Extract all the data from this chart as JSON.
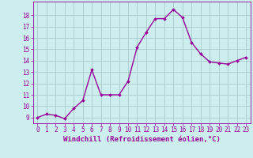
{
  "x": [
    0,
    1,
    2,
    3,
    4,
    5,
    6,
    7,
    8,
    9,
    10,
    11,
    12,
    13,
    14,
    15,
    16,
    17,
    18,
    19,
    20,
    21,
    22,
    23
  ],
  "y": [
    9.0,
    9.3,
    9.2,
    8.9,
    9.8,
    10.5,
    13.2,
    11.0,
    11.0,
    11.0,
    12.2,
    15.2,
    16.5,
    17.7,
    17.7,
    18.5,
    17.8,
    15.6,
    14.6,
    13.9,
    13.8,
    13.7,
    14.0,
    14.3
  ],
  "line_color": "#990099",
  "marker": "D",
  "marker_size": 2.0,
  "line_width": 1.0,
  "bg_color": "#cceeee",
  "grid_color": "#aacccc",
  "xlabel": "Windchill (Refroidissement éolien,°C)",
  "xlabel_color": "#990099",
  "xlabel_fontsize": 6.5,
  "tick_color": "#990099",
  "tick_fontsize": 5.5,
  "ylim": [
    8.5,
    19.2
  ],
  "xlim": [
    -0.5,
    23.5
  ],
  "yticks": [
    9,
    10,
    11,
    12,
    13,
    14,
    15,
    16,
    17,
    18
  ],
  "xticks": [
    0,
    1,
    2,
    3,
    4,
    5,
    6,
    7,
    8,
    9,
    10,
    11,
    12,
    13,
    14,
    15,
    16,
    17,
    18,
    19,
    20,
    21,
    22,
    23
  ]
}
